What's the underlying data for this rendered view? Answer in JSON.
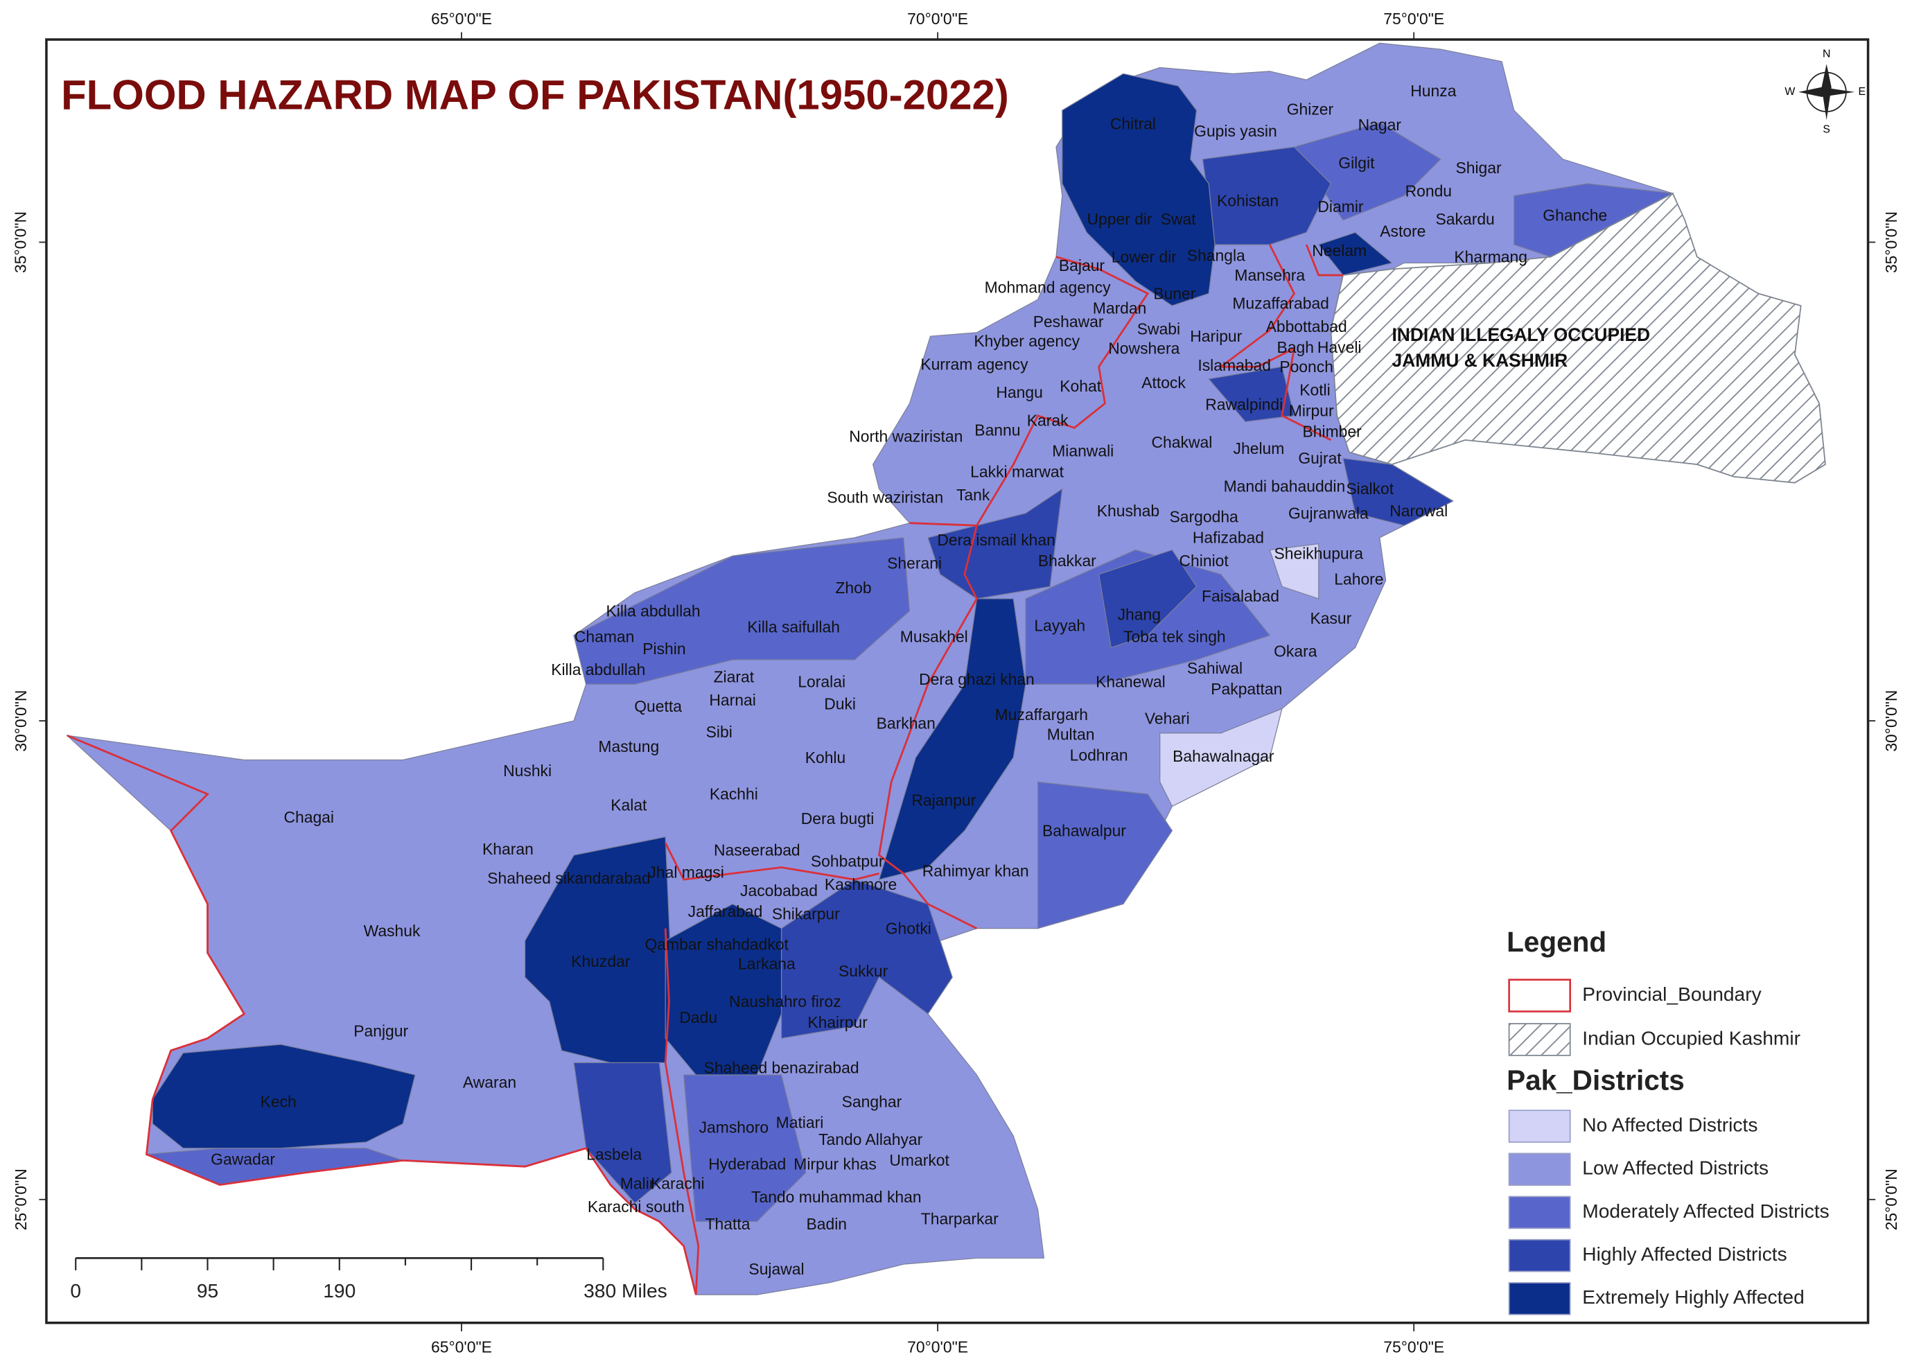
{
  "title": "FLOOD HAZARD MAP OF PAKISTAN(1950-2022)",
  "graticule": {
    "longitudes": [
      "65°0'0\"E",
      "70°0'0\"E",
      "75°0'0\"E"
    ],
    "latitudes": [
      "35°0'0\"N",
      "30°0'0\"N",
      "25°0'0\"N"
    ]
  },
  "compass": {
    "north": "N",
    "south": "S",
    "east": "E",
    "west": "W"
  },
  "region_label": [
    "INDIAN ILLEGALY OCCUPIED",
    "JAMMU & KASHMIR"
  ],
  "districts": [
    "Chitral",
    "Gupis yasin",
    "Ghizer",
    "Hunza",
    "Nagar",
    "Gilgit",
    "Shigar",
    "Rondu",
    "Kohistan",
    "Diamir",
    "Upper dir",
    "Swat",
    "Sakardu",
    "Ghanche",
    "Astore",
    "Bajaur",
    "Lower dir",
    "Shangla",
    "Neelam",
    "Kharmang",
    "Mansehra",
    "Mohmand agency",
    "Buner",
    "Muzaffarabad",
    "Mardan",
    "Abbottabad",
    "Peshawar",
    "Swabi",
    "Haripur",
    "Khyber agency",
    "Nowshera",
    "Bagh",
    "Haveli",
    "Islamabad",
    "Poonch",
    "Kurram agency",
    "Attock",
    "Hangu",
    "Kohat",
    "Kotli",
    "Rawalpindi",
    "Mirpur",
    "Karak",
    "Bannu",
    "Bhimber",
    "North waziristan",
    "Chakwal",
    "Jhelum",
    "Mianwali",
    "Gujrat",
    "Lakki marwat",
    "Mandi bahauddin",
    "Sialkot",
    "South waziristan",
    "Tank",
    "Khushab",
    "Sargodha",
    "Narowal",
    "Hafizabad",
    "Gujranwala",
    "Dera ismail khan",
    "Sheikhupura",
    "Chiniot",
    "Bhakkar",
    "Sherani",
    "Lahore",
    "Zhob",
    "Faisalabad",
    "Killa abdullah",
    "Kasur",
    "Jhang",
    "Killa saifullah",
    "Layyah",
    "Toba tek singh",
    "Chaman",
    "Musakhel",
    "Pishin",
    "Okara",
    "Killa abdullah",
    "Sahiwal",
    "Ziarat",
    "Dera ghazi khan",
    "Khanewal",
    "Loralai",
    "Pakpattan",
    "Harnai",
    "Duki",
    "Quetta",
    "Muzaffargarh",
    "Vehari",
    "Sibi",
    "Barkhan",
    "Multan",
    "Mastung",
    "Lodhran",
    "Bahawalnagar",
    "Kohlu",
    "Nushki",
    "Chagai",
    "Kachhi",
    "Kalat",
    "Rajanpur",
    "Dera bugti",
    "Kharan",
    "Naseerabad",
    "Bahawalpur",
    "Sohbatpur",
    "Shaheed sikandarabad",
    "Jhal magsi",
    "Rahimyar khan",
    "Kashmore",
    "Jacobabad",
    "Jaffarabad",
    "Shikarpur",
    "Washuk",
    "Ghotki",
    "Qambar shahdadkot",
    "Khuzdar",
    "Larkana",
    "Sukkur",
    "Naushahro firoz",
    "Dadu",
    "Khairpur",
    "Panjgur",
    "Shaheed benazirabad",
    "Awaran",
    "Sanghar",
    "Kech",
    "Jamshoro",
    "Matiari",
    "Lasbela",
    "Tando Allahyar",
    "Gawadar",
    "Hyderabad",
    "Mirpur khas",
    "Umarkot",
    "Malir",
    "Karachi",
    "Tando muhammad khan",
    "Karachi south",
    "Thatta",
    "Badin",
    "Tharparkar",
    "Sujawal"
  ],
  "legend": {
    "title": "Legend",
    "boundary": "Provincial_Boundary",
    "kashmir": "Indian Occupied Kashmir",
    "districts_title": "Pak_Districts",
    "classes": [
      {
        "label": "No Affected Districts",
        "color": "#d2d3f6"
      },
      {
        "label": "Low Affected Districts",
        "color": "#8e95df"
      },
      {
        "label": "Moderately Affected Districts",
        "color": "#5866cb"
      },
      {
        "label": "Highly Affected Districts",
        "color": "#2d44ad"
      },
      {
        "label": "Extremely Highly Affected",
        "color": "#0b2e8a"
      }
    ]
  },
  "scale_bar": [
    "0",
    "95",
    "190",
    "380 Miles"
  ]
}
